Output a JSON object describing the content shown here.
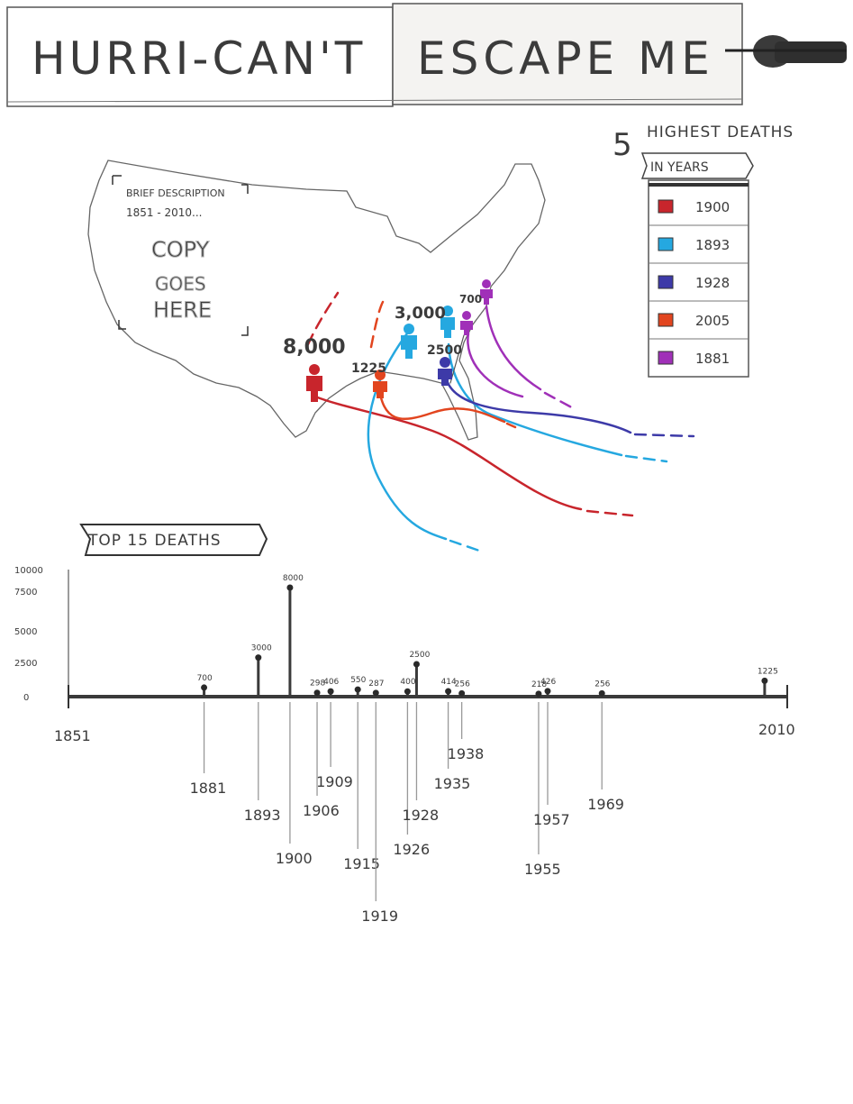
{
  "header": {
    "title_left": "HURRI-CAN'T",
    "title_right": "ESCAPE ME"
  },
  "description_box": {
    "heading": "BRIEF DESCRIPTION",
    "years": "1851 - 2010...",
    "placeholder_lines": [
      "COPY",
      "GOES",
      "HERE"
    ]
  },
  "legend": {
    "number": "5",
    "title": "HIGHEST DEATHS",
    "subtitle": "IN YEARS",
    "items": [
      {
        "year": "1900",
        "color": "#c8252c"
      },
      {
        "year": "1893",
        "color": "#25a8e0"
      },
      {
        "year": "1928",
        "color": "#3d3aa8"
      },
      {
        "year": "2005",
        "color": "#e2451f"
      },
      {
        "year": "1881",
        "color": "#a030b8"
      }
    ]
  },
  "map_labels": [
    {
      "id": "m1900",
      "text": "8,000"
    },
    {
      "id": "m1893",
      "text": "3,000"
    },
    {
      "id": "m2005",
      "text": "1225"
    },
    {
      "id": "m1928",
      "text": "2500"
    },
    {
      "id": "m1881",
      "text": "700"
    }
  ],
  "timeline": {
    "title": "TOP 15 DEATHS",
    "start_label": "1851",
    "end_label": "2010",
    "y_ticks": [
      "10000",
      "7500",
      "5000",
      "2500",
      "0"
    ]
  },
  "chart_data": {
    "type": "bar",
    "title": "TOP 15 DEATHS",
    "x_range": [
      1851,
      2010
    ],
    "y_range": [
      0,
      10000
    ],
    "points": [
      {
        "year": 1881,
        "deaths": 700,
        "label": "700"
      },
      {
        "year": 1893,
        "deaths": 3000,
        "label": "3000"
      },
      {
        "year": 1900,
        "deaths": 8000,
        "label": "8000"
      },
      {
        "year": 1906,
        "deaths": 298,
        "label": "298"
      },
      {
        "year": 1909,
        "deaths": 406,
        "label": "406"
      },
      {
        "year": 1915,
        "deaths": 550,
        "label": "550"
      },
      {
        "year": 1919,
        "deaths": 287,
        "label": "287"
      },
      {
        "year": 1926,
        "deaths": 400,
        "label": "400"
      },
      {
        "year": 1928,
        "deaths": 2500,
        "label": "2500"
      },
      {
        "year": 1935,
        "deaths": 414,
        "label": "414"
      },
      {
        "year": 1938,
        "deaths": 256,
        "label": "256"
      },
      {
        "year": 1955,
        "deaths": 218,
        "label": "218"
      },
      {
        "year": 1957,
        "deaths": 426,
        "label": "426"
      },
      {
        "year": 1969,
        "deaths": 256,
        "label": "256"
      },
      {
        "year": 2005,
        "deaths": 1225,
        "label": "1225"
      }
    ]
  }
}
